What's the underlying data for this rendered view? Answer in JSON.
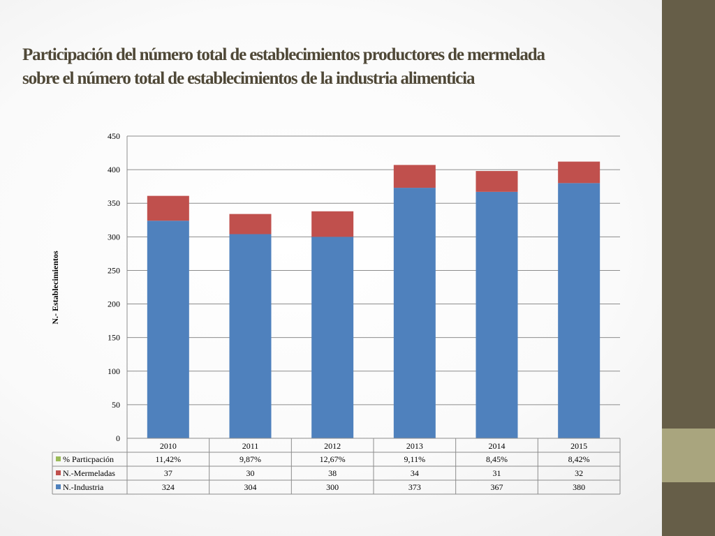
{
  "slide": {
    "title_line1": "Participación del número total de establecimientos productores de mermelada",
    "title_line2": "sobre el número total de establecimientos de la industria alimenticia"
  },
  "colors": {
    "industria": "#4f81bd",
    "mermeladas": "#c0504d",
    "participacion": "#9bbb59",
    "sidebar": "#665e48",
    "sidebar_accent": "#a9a57e",
    "title": "#4f4837"
  },
  "chart_data": {
    "type": "bar",
    "stacked": true,
    "title": "",
    "ylabel": "N.- Establecimientos",
    "xlabel": "",
    "ylim": [
      0,
      450
    ],
    "yticks": [
      0,
      50,
      100,
      150,
      200,
      250,
      300,
      350,
      400,
      450
    ],
    "grid": true,
    "legend": "data-table",
    "categories": [
      "2010",
      "2011",
      "2012",
      "2013",
      "2014",
      "2015"
    ],
    "series": [
      {
        "name": "N.-Industria",
        "values": [
          324,
          304,
          300,
          373,
          367,
          380
        ],
        "color": "#4f81bd"
      },
      {
        "name": "N.-Mermeladas",
        "values": [
          37,
          30,
          38,
          34,
          31,
          32
        ],
        "color": "#c0504d"
      }
    ],
    "table_rows": [
      {
        "name": "% Particpación",
        "color": "#9bbb59",
        "cells": [
          "11,42%",
          "9,87%",
          "12,67%",
          "9,11%",
          "8,45%",
          "8,42%"
        ]
      },
      {
        "name": "N.-Mermeladas",
        "color": "#c0504d",
        "cells": [
          "37",
          "30",
          "38",
          "34",
          "31",
          "32"
        ]
      },
      {
        "name": "N.-Industria",
        "color": "#4f81bd",
        "cells": [
          "324",
          "304",
          "300",
          "373",
          "367",
          "380"
        ]
      }
    ]
  }
}
